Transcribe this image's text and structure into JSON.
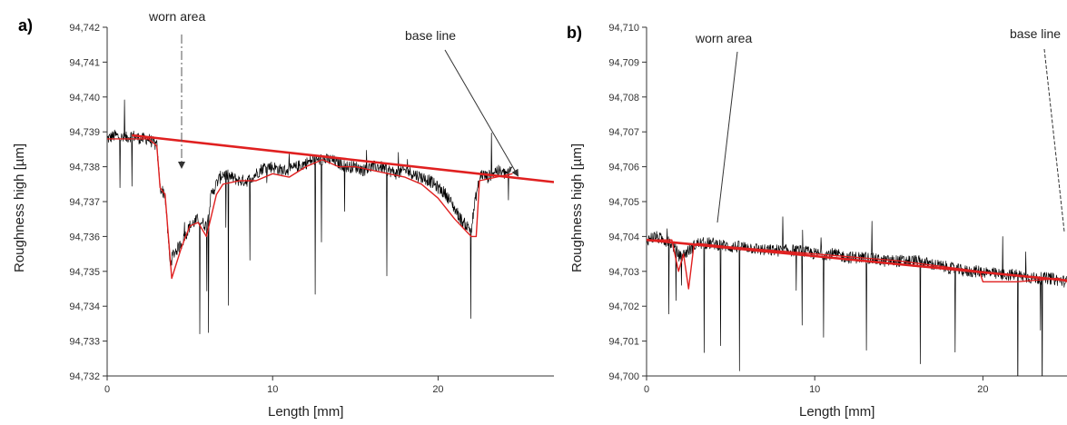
{
  "chart_data": [
    {
      "type": "line",
      "panel_label": "a)",
      "xlabel": "Length [mm]",
      "ylabel": "Roughness high [µm]",
      "xlim": [
        0,
        27
      ],
      "ylim": [
        94.732,
        94.742
      ],
      "x_ticks": [
        0,
        10,
        20
      ],
      "x_tick_labels": [
        "0",
        "10",
        "20"
      ],
      "y_ticks": [
        94.732,
        94.733,
        94.734,
        94.735,
        94.736,
        94.737,
        94.738,
        94.739,
        94.74,
        94.741,
        94.742
      ],
      "y_tick_labels": [
        "94,732",
        "94,733",
        "94,734",
        "94,735",
        "94,736",
        "94,737",
        "94,738",
        "94,739",
        "94,740",
        "94,741",
        "94,742"
      ],
      "grid": false,
      "annotations": [
        {
          "text": "worn area",
          "points_to": [
            4.5,
            94.7375
          ]
        },
        {
          "text": "base line",
          "points_to": [
            25.5,
            94.7378
          ]
        }
      ],
      "series": [
        {
          "kind": "profile",
          "color": "#000000",
          "x": [
            0,
            0.5,
            1,
            1.5,
            2,
            2.5,
            3,
            3.2,
            3.5,
            3.8,
            4,
            4.5,
            5,
            5.5,
            6,
            6.3,
            6.7,
            7,
            7.5,
            8,
            8.5,
            9,
            9.5,
            10,
            10.5,
            11,
            11.5,
            12,
            12.5,
            13,
            13.5,
            14,
            14.5,
            15,
            15.5,
            16,
            16.5,
            17,
            17.5,
            18,
            18.5,
            19,
            19.5,
            20,
            20.5,
            21,
            21.5,
            22,
            22.3,
            22.6,
            23,
            23.5,
            24,
            24.5
          ],
          "y": [
            94.7388,
            94.7389,
            94.7388,
            94.7389,
            94.7388,
            94.7388,
            94.7386,
            94.7374,
            94.7372,
            94.7352,
            94.7355,
            94.7358,
            94.7363,
            94.7365,
            94.7363,
            94.7372,
            94.7376,
            94.7378,
            94.7377,
            94.7376,
            94.7376,
            94.7378,
            94.738,
            94.738,
            94.7379,
            94.7379,
            94.738,
            94.7381,
            94.7382,
            94.7382,
            94.7382,
            94.7381,
            94.738,
            94.738,
            94.7379,
            94.738,
            94.738,
            94.7379,
            94.7378,
            94.7379,
            94.7378,
            94.7377,
            94.7376,
            94.7374,
            94.7372,
            94.7368,
            94.7364,
            94.7362,
            94.7372,
            94.7378,
            94.7377,
            94.7379,
            94.7378,
            94.7379
          ]
        },
        {
          "kind": "smoothed",
          "color": "#e02020",
          "x": [
            0,
            2.5,
            3,
            3.2,
            3.5,
            3.9,
            4.5,
            5,
            5.5,
            6,
            6.3,
            6.6,
            7,
            8,
            9,
            10,
            11,
            12,
            13,
            14,
            15,
            16,
            17,
            18,
            19,
            20,
            21,
            22,
            22.3,
            22.5,
            24.5
          ],
          "y": [
            94.7388,
            94.7388,
            94.7386,
            94.7374,
            94.7372,
            94.7348,
            94.7357,
            94.7363,
            94.7364,
            94.736,
            94.7366,
            94.7372,
            94.7375,
            94.7376,
            94.7376,
            94.7378,
            94.7377,
            94.738,
            94.7382,
            94.738,
            94.738,
            94.7379,
            94.7378,
            94.7377,
            94.7375,
            94.7371,
            94.7365,
            94.736,
            94.736,
            94.7376,
            94.7378
          ]
        },
        {
          "kind": "base line",
          "color": "#e02020",
          "x": [
            1.5,
            27
          ],
          "y": [
            94.7389,
            94.73756
          ]
        }
      ]
    },
    {
      "type": "line",
      "panel_label": "b)",
      "xlabel": "Length [mm]",
      "ylabel": "Roughness high [µm]",
      "xlim": [
        0,
        25
      ],
      "ylim": [
        94.7,
        94.71
      ],
      "x_ticks": [
        0,
        10,
        20
      ],
      "x_tick_labels": [
        "0",
        "10",
        "20"
      ],
      "y_ticks": [
        94.7,
        94.701,
        94.702,
        94.703,
        94.704,
        94.705,
        94.706,
        94.707,
        94.708,
        94.709,
        94.71
      ],
      "y_tick_labels": [
        "94,700",
        "94,701",
        "94,702",
        "94,703",
        "94,704",
        "94,705",
        "94,706",
        "94,707",
        "94,708",
        "94,709",
        "94,710"
      ],
      "grid": false,
      "annotations": [
        {
          "text": "worn area",
          "points_to": [
            2.2,
            94.7036
          ]
        },
        {
          "text": "base line",
          "points_to": [
            25,
            94.7034
          ]
        }
      ],
      "series": [
        {
          "kind": "profile",
          "color": "#000000",
          "x": [
            0,
            0.5,
            1,
            1.5,
            2,
            2.5,
            3,
            4,
            5,
            6,
            7,
            8,
            9,
            10,
            11,
            12,
            13,
            14,
            15,
            16,
            17,
            18,
            19,
            20,
            21,
            22,
            23,
            24,
            25
          ],
          "y": [
            94.7039,
            94.704,
            94.7039,
            94.7038,
            94.7034,
            94.7036,
            94.7038,
            94.7038,
            94.7037,
            94.7037,
            94.7036,
            94.7036,
            94.7036,
            94.7035,
            94.7035,
            94.7034,
            94.7034,
            94.7033,
            94.7033,
            94.7033,
            94.7032,
            94.7031,
            94.703,
            94.703,
            94.7029,
            94.7029,
            94.7028,
            94.7028,
            94.7027
          ]
        },
        {
          "kind": "smoothed",
          "color": "#e02020",
          "x": [
            0,
            1.5,
            1.9,
            2.2,
            2.5,
            2.8,
            3,
            5,
            10,
            15,
            19.8,
            20,
            22,
            24.5,
            25
          ],
          "y": [
            94.7039,
            94.7039,
            94.703,
            94.7035,
            94.7025,
            94.7037,
            94.7038,
            94.7037,
            94.7035,
            94.7033,
            94.703,
            94.7027,
            94.7027,
            94.7028,
            94.7027
          ]
        },
        {
          "kind": "base line",
          "color": "#e02020",
          "x": [
            0,
            25
          ],
          "y": [
            94.7039,
            94.70274
          ]
        }
      ]
    }
  ]
}
